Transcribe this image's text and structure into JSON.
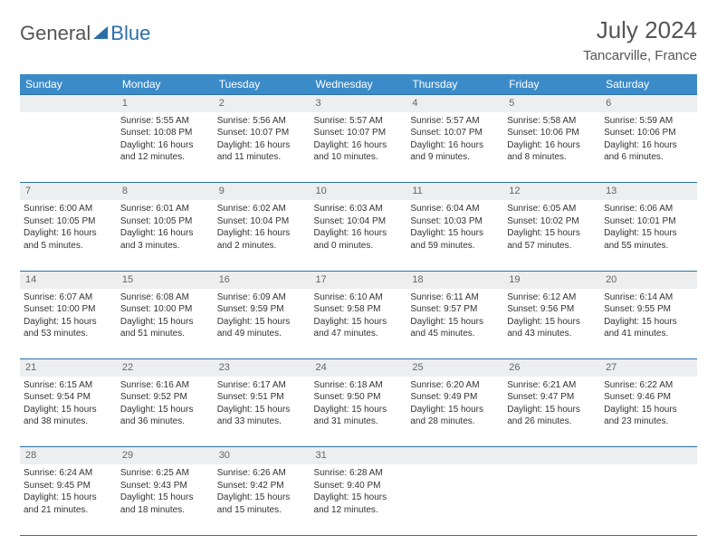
{
  "logo": {
    "general": "General",
    "blue": "Blue"
  },
  "title": "July 2024",
  "location": "Tancarville, France",
  "colors": {
    "header_bg": "#3b8bc9",
    "accent": "#2b6fa8",
    "daynum_bg": "#eceeef",
    "text": "#333333",
    "muted": "#666666"
  },
  "typography": {
    "title_fontsize": 26,
    "location_fontsize": 15,
    "weekday_fontsize": 12,
    "daynum_fontsize": 11,
    "body_fontsize": 10
  },
  "weekdays": [
    "Sunday",
    "Monday",
    "Tuesday",
    "Wednesday",
    "Thursday",
    "Friday",
    "Saturday"
  ],
  "weeks": [
    {
      "nums": [
        "",
        "1",
        "2",
        "3",
        "4",
        "5",
        "6"
      ],
      "cells": [
        {
          "empty": true
        },
        {
          "sunrise": "Sunrise: 5:55 AM",
          "sunset": "Sunset: 10:08 PM",
          "d1": "Daylight: 16 hours",
          "d2": "and 12 minutes."
        },
        {
          "sunrise": "Sunrise: 5:56 AM",
          "sunset": "Sunset: 10:07 PM",
          "d1": "Daylight: 16 hours",
          "d2": "and 11 minutes."
        },
        {
          "sunrise": "Sunrise: 5:57 AM",
          "sunset": "Sunset: 10:07 PM",
          "d1": "Daylight: 16 hours",
          "d2": "and 10 minutes."
        },
        {
          "sunrise": "Sunrise: 5:57 AM",
          "sunset": "Sunset: 10:07 PM",
          "d1": "Daylight: 16 hours",
          "d2": "and 9 minutes."
        },
        {
          "sunrise": "Sunrise: 5:58 AM",
          "sunset": "Sunset: 10:06 PM",
          "d1": "Daylight: 16 hours",
          "d2": "and 8 minutes."
        },
        {
          "sunrise": "Sunrise: 5:59 AM",
          "sunset": "Sunset: 10:06 PM",
          "d1": "Daylight: 16 hours",
          "d2": "and 6 minutes."
        }
      ]
    },
    {
      "nums": [
        "7",
        "8",
        "9",
        "10",
        "11",
        "12",
        "13"
      ],
      "cells": [
        {
          "sunrise": "Sunrise: 6:00 AM",
          "sunset": "Sunset: 10:05 PM",
          "d1": "Daylight: 16 hours",
          "d2": "and 5 minutes."
        },
        {
          "sunrise": "Sunrise: 6:01 AM",
          "sunset": "Sunset: 10:05 PM",
          "d1": "Daylight: 16 hours",
          "d2": "and 3 minutes."
        },
        {
          "sunrise": "Sunrise: 6:02 AM",
          "sunset": "Sunset: 10:04 PM",
          "d1": "Daylight: 16 hours",
          "d2": "and 2 minutes."
        },
        {
          "sunrise": "Sunrise: 6:03 AM",
          "sunset": "Sunset: 10:04 PM",
          "d1": "Daylight: 16 hours",
          "d2": "and 0 minutes."
        },
        {
          "sunrise": "Sunrise: 6:04 AM",
          "sunset": "Sunset: 10:03 PM",
          "d1": "Daylight: 15 hours",
          "d2": "and 59 minutes."
        },
        {
          "sunrise": "Sunrise: 6:05 AM",
          "sunset": "Sunset: 10:02 PM",
          "d1": "Daylight: 15 hours",
          "d2": "and 57 minutes."
        },
        {
          "sunrise": "Sunrise: 6:06 AM",
          "sunset": "Sunset: 10:01 PM",
          "d1": "Daylight: 15 hours",
          "d2": "and 55 minutes."
        }
      ]
    },
    {
      "nums": [
        "14",
        "15",
        "16",
        "17",
        "18",
        "19",
        "20"
      ],
      "cells": [
        {
          "sunrise": "Sunrise: 6:07 AM",
          "sunset": "Sunset: 10:00 PM",
          "d1": "Daylight: 15 hours",
          "d2": "and 53 minutes."
        },
        {
          "sunrise": "Sunrise: 6:08 AM",
          "sunset": "Sunset: 10:00 PM",
          "d1": "Daylight: 15 hours",
          "d2": "and 51 minutes."
        },
        {
          "sunrise": "Sunrise: 6:09 AM",
          "sunset": "Sunset: 9:59 PM",
          "d1": "Daylight: 15 hours",
          "d2": "and 49 minutes."
        },
        {
          "sunrise": "Sunrise: 6:10 AM",
          "sunset": "Sunset: 9:58 PM",
          "d1": "Daylight: 15 hours",
          "d2": "and 47 minutes."
        },
        {
          "sunrise": "Sunrise: 6:11 AM",
          "sunset": "Sunset: 9:57 PM",
          "d1": "Daylight: 15 hours",
          "d2": "and 45 minutes."
        },
        {
          "sunrise": "Sunrise: 6:12 AM",
          "sunset": "Sunset: 9:56 PM",
          "d1": "Daylight: 15 hours",
          "d2": "and 43 minutes."
        },
        {
          "sunrise": "Sunrise: 6:14 AM",
          "sunset": "Sunset: 9:55 PM",
          "d1": "Daylight: 15 hours",
          "d2": "and 41 minutes."
        }
      ]
    },
    {
      "nums": [
        "21",
        "22",
        "23",
        "24",
        "25",
        "26",
        "27"
      ],
      "cells": [
        {
          "sunrise": "Sunrise: 6:15 AM",
          "sunset": "Sunset: 9:54 PM",
          "d1": "Daylight: 15 hours",
          "d2": "and 38 minutes."
        },
        {
          "sunrise": "Sunrise: 6:16 AM",
          "sunset": "Sunset: 9:52 PM",
          "d1": "Daylight: 15 hours",
          "d2": "and 36 minutes."
        },
        {
          "sunrise": "Sunrise: 6:17 AM",
          "sunset": "Sunset: 9:51 PM",
          "d1": "Daylight: 15 hours",
          "d2": "and 33 minutes."
        },
        {
          "sunrise": "Sunrise: 6:18 AM",
          "sunset": "Sunset: 9:50 PM",
          "d1": "Daylight: 15 hours",
          "d2": "and 31 minutes."
        },
        {
          "sunrise": "Sunrise: 6:20 AM",
          "sunset": "Sunset: 9:49 PM",
          "d1": "Daylight: 15 hours",
          "d2": "and 28 minutes."
        },
        {
          "sunrise": "Sunrise: 6:21 AM",
          "sunset": "Sunset: 9:47 PM",
          "d1": "Daylight: 15 hours",
          "d2": "and 26 minutes."
        },
        {
          "sunrise": "Sunrise: 6:22 AM",
          "sunset": "Sunset: 9:46 PM",
          "d1": "Daylight: 15 hours",
          "d2": "and 23 minutes."
        }
      ]
    },
    {
      "nums": [
        "28",
        "29",
        "30",
        "31",
        "",
        "",
        ""
      ],
      "cells": [
        {
          "sunrise": "Sunrise: 6:24 AM",
          "sunset": "Sunset: 9:45 PM",
          "d1": "Daylight: 15 hours",
          "d2": "and 21 minutes."
        },
        {
          "sunrise": "Sunrise: 6:25 AM",
          "sunset": "Sunset: 9:43 PM",
          "d1": "Daylight: 15 hours",
          "d2": "and 18 minutes."
        },
        {
          "sunrise": "Sunrise: 6:26 AM",
          "sunset": "Sunset: 9:42 PM",
          "d1": "Daylight: 15 hours",
          "d2": "and 15 minutes."
        },
        {
          "sunrise": "Sunrise: 6:28 AM",
          "sunset": "Sunset: 9:40 PM",
          "d1": "Daylight: 15 hours",
          "d2": "and 12 minutes."
        },
        {
          "empty": true
        },
        {
          "empty": true
        },
        {
          "empty": true
        }
      ]
    }
  ]
}
